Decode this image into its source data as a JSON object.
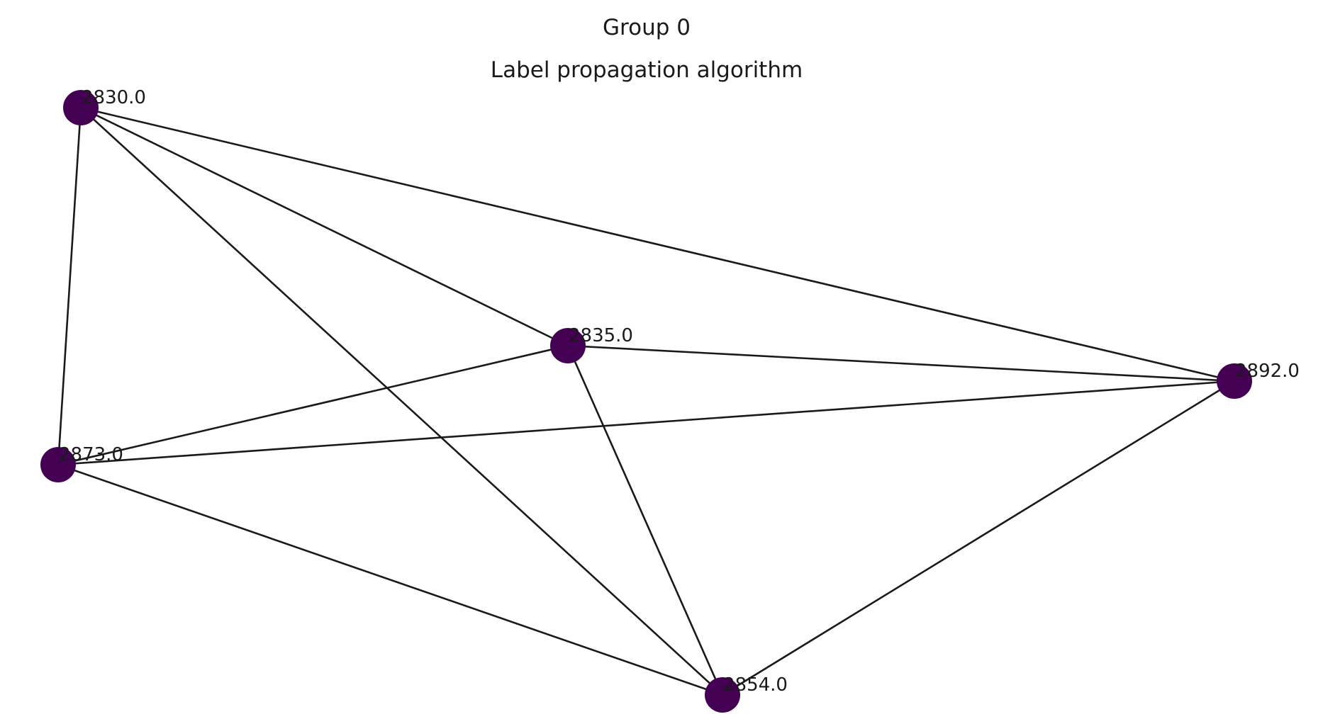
{
  "figure": {
    "title": "Group 0",
    "subtitle": "Label propagation algorithm"
  },
  "graph": {
    "node_color": "#440154",
    "edge_color": "#1a1a1a",
    "nodes": [
      {
        "id": "2830",
        "label": "2830.0"
      },
      {
        "id": "2835",
        "label": "2835.0"
      },
      {
        "id": "2892",
        "label": "2892.0"
      },
      {
        "id": "2873",
        "label": "2873.0"
      },
      {
        "id": "2854",
        "label": "2854.0"
      }
    ],
    "edges": [
      [
        "2830",
        "2873"
      ],
      [
        "2830",
        "2835"
      ],
      [
        "2830",
        "2892"
      ],
      [
        "2830",
        "2854"
      ],
      [
        "2835",
        "2892"
      ],
      [
        "2835",
        "2873"
      ],
      [
        "2835",
        "2854"
      ],
      [
        "2873",
        "2892"
      ],
      [
        "2873",
        "2854"
      ],
      [
        "2892",
        "2854"
      ]
    ]
  }
}
